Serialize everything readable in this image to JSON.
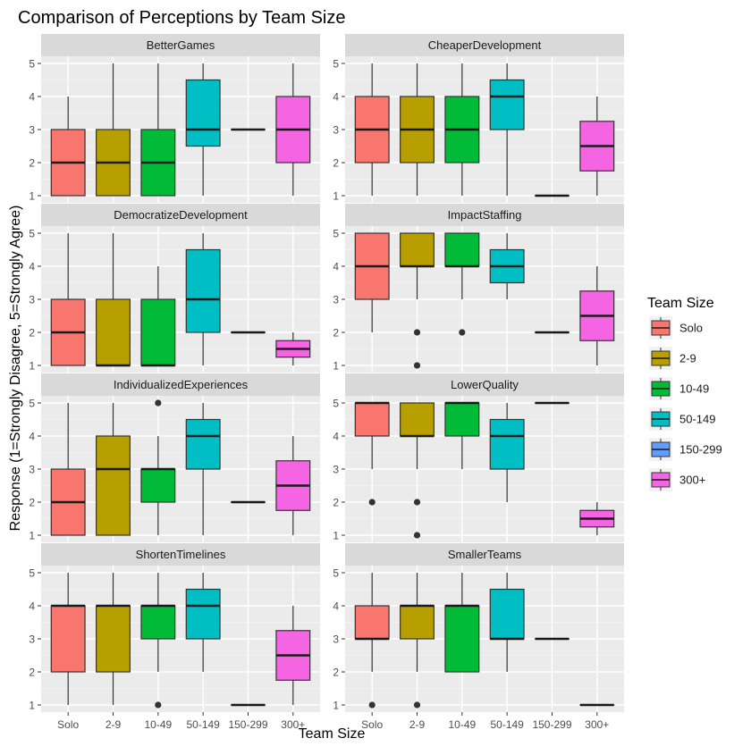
{
  "chart_data": {
    "type": "boxplot",
    "title": "Comparison of Perceptions by Team Size",
    "xlabel": "Team Size",
    "ylabel": "Response (1=Strongly Disagree, 5=Strongly Agree)",
    "categories": [
      "Solo",
      "2-9",
      "10-49",
      "50-149",
      "150-299",
      "300+"
    ],
    "ylim": [
      1,
      5
    ],
    "yticks": [
      "1",
      "2",
      "3",
      "4",
      "5"
    ],
    "grid": true,
    "legend": {
      "title": "Team Size",
      "position": "right",
      "entries": [
        "Solo",
        "2-9",
        "10-49",
        "50-149",
        "150-299",
        "300+"
      ]
    },
    "colors": {
      "Solo": "#F8766D",
      "2-9": "#B79F00",
      "10-49": "#00BA38",
      "50-149": "#00BFC4",
      "150-299": "#619CFF",
      "300+": "#F564E3"
    },
    "facets": [
      {
        "name": "BetterGames",
        "boxes": [
          {
            "category": "Solo",
            "min": 1,
            "q1": 1,
            "median": 2,
            "q3": 3,
            "max": 4,
            "outliers": []
          },
          {
            "category": "2-9",
            "min": 1,
            "q1": 1,
            "median": 2,
            "q3": 3,
            "max": 5,
            "outliers": []
          },
          {
            "category": "10-49",
            "min": 1,
            "q1": 1,
            "median": 2,
            "q3": 3,
            "max": 5,
            "outliers": []
          },
          {
            "category": "50-149",
            "min": 1,
            "q1": 2.5,
            "median": 3,
            "q3": 4.5,
            "max": 5,
            "outliers": []
          },
          {
            "category": "150-299",
            "min": 3,
            "q1": 3,
            "median": 3,
            "q3": 3,
            "max": 3,
            "outliers": []
          },
          {
            "category": "300+",
            "min": 1,
            "q1": 2,
            "median": 3,
            "q3": 4,
            "max": 5,
            "outliers": []
          }
        ]
      },
      {
        "name": "CheaperDevelopment",
        "boxes": [
          {
            "category": "Solo",
            "min": 1,
            "q1": 2,
            "median": 3,
            "q3": 4,
            "max": 5,
            "outliers": []
          },
          {
            "category": "2-9",
            "min": 1,
            "q1": 2,
            "median": 3,
            "q3": 4,
            "max": 5,
            "outliers": []
          },
          {
            "category": "10-49",
            "min": 1,
            "q1": 2,
            "median": 3,
            "q3": 4,
            "max": 5,
            "outliers": []
          },
          {
            "category": "50-149",
            "min": 1,
            "q1": 3,
            "median": 4,
            "q3": 4.5,
            "max": 5,
            "outliers": []
          },
          {
            "category": "150-299",
            "min": 1,
            "q1": 1,
            "median": 1,
            "q3": 1,
            "max": 1,
            "outliers": []
          },
          {
            "category": "300+",
            "min": 1,
            "q1": 1.75,
            "median": 2.5,
            "q3": 3.25,
            "max": 4,
            "outliers": []
          }
        ]
      },
      {
        "name": "DemocratizeDevelopment",
        "boxes": [
          {
            "category": "Solo",
            "min": 1,
            "q1": 1,
            "median": 2,
            "q3": 3,
            "max": 5,
            "outliers": []
          },
          {
            "category": "2-9",
            "min": 1,
            "q1": 1,
            "median": 1,
            "q3": 3,
            "max": 5,
            "outliers": []
          },
          {
            "category": "10-49",
            "min": 1,
            "q1": 1,
            "median": 1,
            "q3": 3,
            "max": 4,
            "outliers": []
          },
          {
            "category": "50-149",
            "min": 1,
            "q1": 2,
            "median": 3,
            "q3": 4.5,
            "max": 5,
            "outliers": []
          },
          {
            "category": "150-299",
            "min": 2,
            "q1": 2,
            "median": 2,
            "q3": 2,
            "max": 2,
            "outliers": []
          },
          {
            "category": "300+",
            "min": 1,
            "q1": 1.25,
            "median": 1.5,
            "q3": 1.75,
            "max": 2,
            "outliers": []
          }
        ]
      },
      {
        "name": "ImpactStaffing",
        "boxes": [
          {
            "category": "Solo",
            "min": 2,
            "q1": 3,
            "median": 4,
            "q3": 5,
            "max": 5,
            "outliers": []
          },
          {
            "category": "2-9",
            "min": 3,
            "q1": 4,
            "median": 4,
            "q3": 5,
            "max": 5,
            "outliers": [
              2,
              1
            ]
          },
          {
            "category": "10-49",
            "min": 3,
            "q1": 4,
            "median": 4,
            "q3": 5,
            "max": 5,
            "outliers": [
              2
            ]
          },
          {
            "category": "50-149",
            "min": 3,
            "q1": 3.5,
            "median": 4,
            "q3": 4.5,
            "max": 5,
            "outliers": []
          },
          {
            "category": "150-299",
            "min": 2,
            "q1": 2,
            "median": 2,
            "q3": 2,
            "max": 2,
            "outliers": []
          },
          {
            "category": "300+",
            "min": 1,
            "q1": 1.75,
            "median": 2.5,
            "q3": 3.25,
            "max": 4,
            "outliers": []
          }
        ]
      },
      {
        "name": "IndividualizedExperiences",
        "boxes": [
          {
            "category": "Solo",
            "min": 1,
            "q1": 1,
            "median": 2,
            "q3": 3,
            "max": 5,
            "outliers": []
          },
          {
            "category": "2-9",
            "min": 1,
            "q1": 1,
            "median": 3,
            "q3": 4,
            "max": 5,
            "outliers": []
          },
          {
            "category": "10-49",
            "min": 1,
            "q1": 2,
            "median": 3,
            "q3": 3,
            "max": 4,
            "outliers": [
              5
            ]
          },
          {
            "category": "50-149",
            "min": 1,
            "q1": 3,
            "median": 4,
            "q3": 4.5,
            "max": 5,
            "outliers": []
          },
          {
            "category": "150-299",
            "min": 2,
            "q1": 2,
            "median": 2,
            "q3": 2,
            "max": 2,
            "outliers": []
          },
          {
            "category": "300+",
            "min": 1,
            "q1": 1.75,
            "median": 2.5,
            "q3": 3.25,
            "max": 4,
            "outliers": []
          }
        ]
      },
      {
        "name": "LowerQuality",
        "boxes": [
          {
            "category": "Solo",
            "min": 3,
            "q1": 4,
            "median": 5,
            "q3": 5,
            "max": 5,
            "outliers": [
              2
            ]
          },
          {
            "category": "2-9",
            "min": 3,
            "q1": 4,
            "median": 4,
            "q3": 5,
            "max": 5,
            "outliers": [
              2,
              1
            ]
          },
          {
            "category": "10-49",
            "min": 3,
            "q1": 4,
            "median": 5,
            "q3": 5,
            "max": 5,
            "outliers": []
          },
          {
            "category": "50-149",
            "min": 2,
            "q1": 3,
            "median": 4,
            "q3": 4.5,
            "max": 5,
            "outliers": []
          },
          {
            "category": "150-299",
            "min": 5,
            "q1": 5,
            "median": 5,
            "q3": 5,
            "max": 5,
            "outliers": []
          },
          {
            "category": "300+",
            "min": 1,
            "q1": 1.25,
            "median": 1.5,
            "q3": 1.75,
            "max": 2,
            "outliers": []
          }
        ]
      },
      {
        "name": "ShortenTimelines",
        "boxes": [
          {
            "category": "Solo",
            "min": 1,
            "q1": 2,
            "median": 4,
            "q3": 4,
            "max": 5,
            "outliers": []
          },
          {
            "category": "2-9",
            "min": 1,
            "q1": 2,
            "median": 4,
            "q3": 4,
            "max": 5,
            "outliers": []
          },
          {
            "category": "10-49",
            "min": 2,
            "q1": 3,
            "median": 4,
            "q3": 4,
            "max": 5,
            "outliers": [
              1
            ]
          },
          {
            "category": "50-149",
            "min": 2,
            "q1": 3,
            "median": 4,
            "q3": 4.5,
            "max": 5,
            "outliers": []
          },
          {
            "category": "150-299",
            "min": 1,
            "q1": 1,
            "median": 1,
            "q3": 1,
            "max": 1,
            "outliers": []
          },
          {
            "category": "300+",
            "min": 1,
            "q1": 1.75,
            "median": 2.5,
            "q3": 3.25,
            "max": 4,
            "outliers": []
          }
        ]
      },
      {
        "name": "SmallerTeams",
        "boxes": [
          {
            "category": "Solo",
            "min": 2,
            "q1": 3,
            "median": 3,
            "q3": 4,
            "max": 5,
            "outliers": [
              1
            ]
          },
          {
            "category": "2-9",
            "min": 2,
            "q1": 3,
            "median": 4,
            "q3": 4,
            "max": 5,
            "outliers": [
              1
            ]
          },
          {
            "category": "10-49",
            "min": 2,
            "q1": 2,
            "median": 4,
            "q3": 4,
            "max": 5,
            "outliers": []
          },
          {
            "category": "50-149",
            "min": 2,
            "q1": 3,
            "median": 3,
            "q3": 4.5,
            "max": 5,
            "outliers": []
          },
          {
            "category": "150-299",
            "min": 3,
            "q1": 3,
            "median": 3,
            "q3": 3,
            "max": 3,
            "outliers": []
          },
          {
            "category": "300+",
            "min": 1,
            "q1": 1,
            "median": 1,
            "q3": 1,
            "max": 1,
            "outliers": []
          }
        ]
      }
    ]
  }
}
